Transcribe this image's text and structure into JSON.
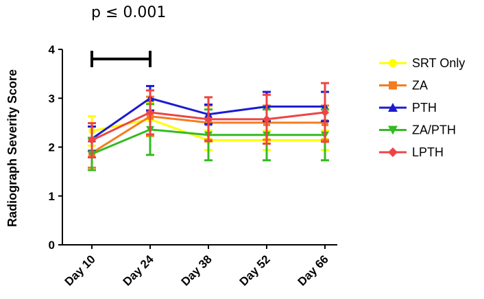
{
  "chart_data": {
    "type": "line",
    "ylabel": "Radiograph Severity Score",
    "xlabel": "",
    "categories": [
      "Day 10",
      "Day 24",
      "Day 38",
      "Day 52",
      "Day 66"
    ],
    "ylim": [
      0,
      4
    ],
    "yticks": [
      "0",
      "1",
      "2",
      "3",
      "4"
    ],
    "annotation": "p ≤ 0.001",
    "significance_bar": [
      "Day 10",
      "Day 24"
    ],
    "legend_position": "right",
    "grid": false,
    "series": [
      {
        "name": "SRT Only",
        "color": "#ffff00",
        "marker": "circle",
        "values": [
          2.33,
          2.57,
          2.14,
          2.14,
          2.14
        ],
        "err": [
          0.3,
          0.35,
          0.2,
          0.2,
          0.2
        ]
      },
      {
        "name": "ZA",
        "color": "#f47c20",
        "marker": "square",
        "values": [
          1.88,
          2.63,
          2.5,
          2.5,
          2.5
        ],
        "err": [
          0.3,
          0.4,
          0.35,
          0.35,
          0.35
        ]
      },
      {
        "name": "PTH",
        "color": "#1b1bd1",
        "marker": "triangle-up",
        "values": [
          2.17,
          3.0,
          2.67,
          2.83,
          2.83
        ],
        "err": [
          0.25,
          0.25,
          0.2,
          0.3,
          0.3
        ]
      },
      {
        "name": "ZA/PTH",
        "color": "#33bb22",
        "marker": "triangle-down",
        "values": [
          1.86,
          2.36,
          2.25,
          2.25,
          2.25
        ],
        "err": [
          0.33,
          0.52,
          0.52,
          0.52,
          0.52
        ]
      },
      {
        "name": "LPTH",
        "color": "#ee4444",
        "marker": "diamond",
        "values": [
          2.14,
          2.71,
          2.57,
          2.57,
          2.71
        ],
        "err": [
          0.35,
          0.45,
          0.45,
          0.5,
          0.6
        ]
      }
    ]
  }
}
